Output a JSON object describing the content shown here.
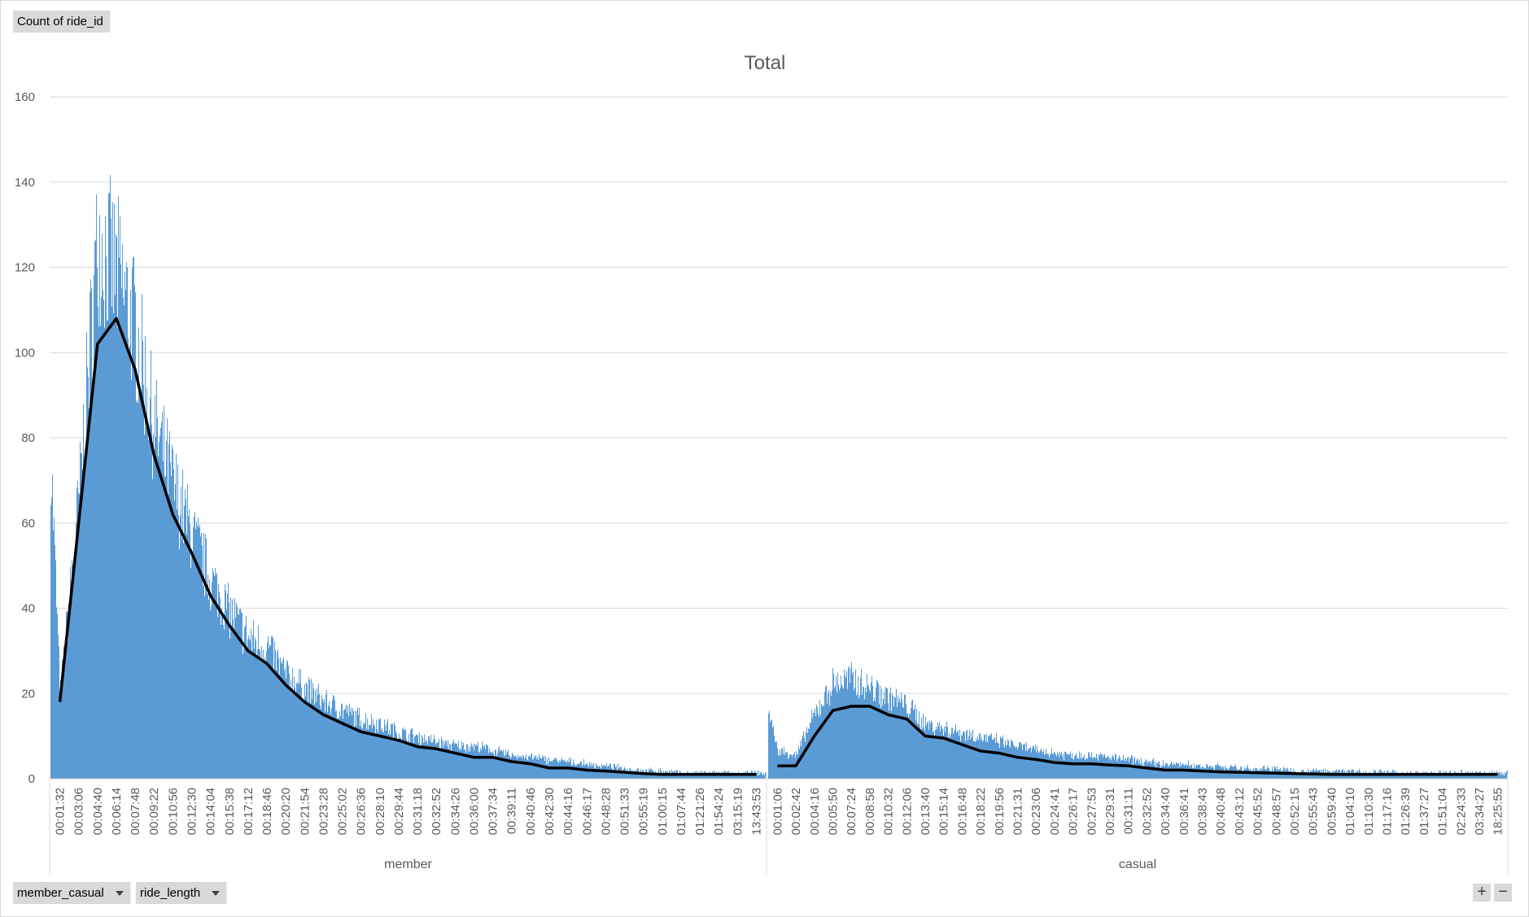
{
  "field_buttons": {
    "value_field": "Count of ride_id",
    "axis_fields": [
      "member_casual",
      "ride_length"
    ]
  },
  "zoom": {
    "expand": "+",
    "collapse": "−"
  },
  "chart_data": {
    "type": "bar",
    "title": "Total",
    "ylim": [
      0,
      160
    ],
    "yticks": [
      0,
      20,
      40,
      60,
      80,
      100,
      120,
      140,
      160
    ],
    "grid": true,
    "groups": [
      {
        "name": "member",
        "tick_labels": [
          "00:01:32",
          "00:03:06",
          "00:04:40",
          "00:06:14",
          "00:07:48",
          "00:09:22",
          "00:10:56",
          "00:12:30",
          "00:14:04",
          "00:15:38",
          "00:17:12",
          "00:18:46",
          "00:20:20",
          "00:21:54",
          "00:23:28",
          "00:25:02",
          "00:26:36",
          "00:28:10",
          "00:29:44",
          "00:31:18",
          "00:32:52",
          "00:34:26",
          "00:36:00",
          "00:37:34",
          "00:39:11",
          "00:40:46",
          "00:42:30",
          "00:44:16",
          "00:46:17",
          "00:48:28",
          "00:51:33",
          "00:55:19",
          "01:00:15",
          "01:07:44",
          "01:21:26",
          "01:54:24",
          "03:15:19",
          "13:43:53"
        ],
        "bar_profile": [
          {
            "x": "start",
            "y": 72
          },
          {
            "x": "00:01:32",
            "y": 18
          },
          {
            "x": "00:03:06",
            "y": 62
          },
          {
            "x": "00:04:40",
            "y": 120
          },
          {
            "x": "00:06:14",
            "y": 112
          },
          {
            "x": "00:07:48",
            "y": 100
          },
          {
            "x": "00:09:22",
            "y": 78
          },
          {
            "x": "00:10:56",
            "y": 65
          },
          {
            "x": "00:12:30",
            "y": 54
          },
          {
            "x": "00:14:04",
            "y": 44
          },
          {
            "x": "00:15:38",
            "y": 37
          },
          {
            "x": "00:17:12",
            "y": 31
          },
          {
            "x": "00:18:46",
            "y": 29
          },
          {
            "x": "00:20:20",
            "y": 23
          },
          {
            "x": "00:21:54",
            "y": 20
          },
          {
            "x": "00:23:28",
            "y": 17
          },
          {
            "x": "00:25:02",
            "y": 15
          },
          {
            "x": "00:26:36",
            "y": 13
          },
          {
            "x": "00:28:10",
            "y": 12
          },
          {
            "x": "00:29:44",
            "y": 10
          },
          {
            "x": "00:31:18",
            "y": 9
          },
          {
            "x": "00:32:52",
            "y": 8
          },
          {
            "x": "00:34:26",
            "y": 7
          },
          {
            "x": "00:36:00",
            "y": 7
          },
          {
            "x": "00:37:34",
            "y": 6
          },
          {
            "x": "00:39:11",
            "y": 5
          },
          {
            "x": "00:40:46",
            "y": 4.5
          },
          {
            "x": "00:42:30",
            "y": 4
          },
          {
            "x": "00:44:16",
            "y": 3.5
          },
          {
            "x": "00:46:17",
            "y": 3
          },
          {
            "x": "00:48:28",
            "y": 2.5
          },
          {
            "x": "00:51:33",
            "y": 2
          },
          {
            "x": "00:55:19",
            "y": 1.5
          },
          {
            "x": "01:00:15",
            "y": 1.5
          },
          {
            "x": "01:07:44",
            "y": 1
          },
          {
            "x": "01:21:26",
            "y": 1
          },
          {
            "x": "01:54:24",
            "y": 1
          },
          {
            "x": "03:15:19",
            "y": 1
          },
          {
            "x": "13:43:53",
            "y": 1
          }
        ],
        "trendline": [
          {
            "x": "00:01:32",
            "y": 18
          },
          {
            "x": "00:03:06",
            "y": 60
          },
          {
            "x": "00:04:40",
            "y": 102
          },
          {
            "x": "00:06:14",
            "y": 108
          },
          {
            "x": "00:07:48",
            "y": 96
          },
          {
            "x": "00:09:22",
            "y": 76
          },
          {
            "x": "00:10:56",
            "y": 62
          },
          {
            "x": "00:12:30",
            "y": 53
          },
          {
            "x": "00:14:04",
            "y": 43
          },
          {
            "x": "00:15:38",
            "y": 36
          },
          {
            "x": "00:17:12",
            "y": 30
          },
          {
            "x": "00:18:46",
            "y": 27
          },
          {
            "x": "00:20:20",
            "y": 22
          },
          {
            "x": "00:21:54",
            "y": 18
          },
          {
            "x": "00:23:28",
            "y": 15
          },
          {
            "x": "00:25:02",
            "y": 13
          },
          {
            "x": "00:26:36",
            "y": 11
          },
          {
            "x": "00:28:10",
            "y": 10
          },
          {
            "x": "00:29:44",
            "y": 9
          },
          {
            "x": "00:31:18",
            "y": 7.5
          },
          {
            "x": "00:32:52",
            "y": 7
          },
          {
            "x": "00:34:26",
            "y": 6
          },
          {
            "x": "00:36:00",
            "y": 5
          },
          {
            "x": "00:37:34",
            "y": 5
          },
          {
            "x": "00:39:11",
            "y": 4
          },
          {
            "x": "00:40:46",
            "y": 3.5
          },
          {
            "x": "00:42:30",
            "y": 2.5
          },
          {
            "x": "00:44:16",
            "y": 2.5
          },
          {
            "x": "00:46:17",
            "y": 2
          },
          {
            "x": "00:48:28",
            "y": 1.8
          },
          {
            "x": "00:51:33",
            "y": 1.5
          },
          {
            "x": "00:55:19",
            "y": 1.2
          },
          {
            "x": "01:00:15",
            "y": 1
          },
          {
            "x": "01:07:44",
            "y": 1
          },
          {
            "x": "01:21:26",
            "y": 1
          },
          {
            "x": "01:54:24",
            "y": 1
          },
          {
            "x": "03:15:19",
            "y": 1
          },
          {
            "x": "13:43:53",
            "y": 1
          }
        ]
      },
      {
        "name": "casual",
        "tick_labels": [
          "00:01:06",
          "00:02:42",
          "00:04:16",
          "00:05:50",
          "00:07:24",
          "00:08:58",
          "00:10:32",
          "00:12:06",
          "00:13:40",
          "00:15:14",
          "00:16:48",
          "00:18:22",
          "00:19:56",
          "00:21:31",
          "00:23:06",
          "00:24:41",
          "00:26:17",
          "00:27:53",
          "00:29:31",
          "00:31:11",
          "00:32:52",
          "00:34:40",
          "00:36:41",
          "00:38:43",
          "00:40:48",
          "00:43:12",
          "00:45:52",
          "00:48:57",
          "00:52:15",
          "00:55:43",
          "00:59:40",
          "01:04:10",
          "01:10:30",
          "01:17:16",
          "01:26:39",
          "01:37:27",
          "01:51:04",
          "02:24:33",
          "03:34:27",
          "18:25:55"
        ],
        "bar_profile": [
          {
            "x": "start",
            "y": 15
          },
          {
            "x": "00:01:06",
            "y": 6
          },
          {
            "x": "00:02:42",
            "y": 5
          },
          {
            "x": "00:04:16",
            "y": 14
          },
          {
            "x": "00:05:50",
            "y": 21
          },
          {
            "x": "00:07:24",
            "y": 22
          },
          {
            "x": "00:08:58",
            "y": 20
          },
          {
            "x": "00:10:32",
            "y": 18
          },
          {
            "x": "00:12:06",
            "y": 16
          },
          {
            "x": "00:13:40",
            "y": 12
          },
          {
            "x": "00:15:14",
            "y": 11
          },
          {
            "x": "00:16:48",
            "y": 10
          },
          {
            "x": "00:18:22",
            "y": 9
          },
          {
            "x": "00:19:56",
            "y": 8
          },
          {
            "x": "00:21:31",
            "y": 7
          },
          {
            "x": "00:23:06",
            "y": 6
          },
          {
            "x": "00:24:41",
            "y": 5.5
          },
          {
            "x": "00:26:17",
            "y": 5
          },
          {
            "x": "00:27:53",
            "y": 5
          },
          {
            "x": "00:29:31",
            "y": 4.5
          },
          {
            "x": "00:31:11",
            "y": 4
          },
          {
            "x": "00:32:52",
            "y": 3.5
          },
          {
            "x": "00:34:40",
            "y": 3
          },
          {
            "x": "00:36:41",
            "y": 3
          },
          {
            "x": "00:38:43",
            "y": 2.5
          },
          {
            "x": "00:40:48",
            "y": 2.5
          },
          {
            "x": "00:43:12",
            "y": 2
          },
          {
            "x": "00:45:52",
            "y": 2
          },
          {
            "x": "00:48:57",
            "y": 2
          },
          {
            "x": "00:52:15",
            "y": 1.5
          },
          {
            "x": "00:55:43",
            "y": 1.5
          },
          {
            "x": "00:59:40",
            "y": 1.5
          },
          {
            "x": "01:04:10",
            "y": 1.5
          },
          {
            "x": "01:10:30",
            "y": 1.2
          },
          {
            "x": "01:17:16",
            "y": 1.2
          },
          {
            "x": "01:26:39",
            "y": 1
          },
          {
            "x": "01:37:27",
            "y": 1
          },
          {
            "x": "01:51:04",
            "y": 1
          },
          {
            "x": "02:24:33",
            "y": 1
          },
          {
            "x": "03:34:27",
            "y": 1
          },
          {
            "x": "18:25:55",
            "y": 1
          }
        ],
        "trendline": [
          {
            "x": "00:01:06",
            "y": 3
          },
          {
            "x": "00:02:42",
            "y": 3
          },
          {
            "x": "00:04:16",
            "y": 10
          },
          {
            "x": "00:05:50",
            "y": 16
          },
          {
            "x": "00:07:24",
            "y": 17
          },
          {
            "x": "00:08:58",
            "y": 17
          },
          {
            "x": "00:10:32",
            "y": 15
          },
          {
            "x": "00:12:06",
            "y": 14
          },
          {
            "x": "00:13:40",
            "y": 10
          },
          {
            "x": "00:15:14",
            "y": 9.5
          },
          {
            "x": "00:16:48",
            "y": 8
          },
          {
            "x": "00:18:22",
            "y": 6.5
          },
          {
            "x": "00:19:56",
            "y": 6
          },
          {
            "x": "00:21:31",
            "y": 5
          },
          {
            "x": "00:23:06",
            "y": 4.5
          },
          {
            "x": "00:24:41",
            "y": 3.8
          },
          {
            "x": "00:26:17",
            "y": 3.5
          },
          {
            "x": "00:27:53",
            "y": 3.5
          },
          {
            "x": "00:29:31",
            "y": 3.2
          },
          {
            "x": "00:31:11",
            "y": 3
          },
          {
            "x": "00:32:52",
            "y": 2.5
          },
          {
            "x": "00:34:40",
            "y": 2
          },
          {
            "x": "00:36:41",
            "y": 2
          },
          {
            "x": "00:38:43",
            "y": 1.8
          },
          {
            "x": "00:40:48",
            "y": 1.6
          },
          {
            "x": "00:43:12",
            "y": 1.5
          },
          {
            "x": "00:45:52",
            "y": 1.4
          },
          {
            "x": "00:48:57",
            "y": 1.3
          },
          {
            "x": "00:52:15",
            "y": 1.2
          },
          {
            "x": "00:55:43",
            "y": 1.1
          },
          {
            "x": "00:59:40",
            "y": 1
          },
          {
            "x": "01:04:10",
            "y": 1
          },
          {
            "x": "01:10:30",
            "y": 1
          },
          {
            "x": "01:17:16",
            "y": 1
          },
          {
            "x": "01:26:39",
            "y": 1
          },
          {
            "x": "01:37:27",
            "y": 1
          },
          {
            "x": "01:51:04",
            "y": 1
          },
          {
            "x": "02:24:33",
            "y": 1
          },
          {
            "x": "03:34:27",
            "y": 1
          },
          {
            "x": "18:25:55",
            "y": 1
          }
        ]
      }
    ],
    "colors": {
      "bars": "#5b9bd5",
      "trendline": "#000000",
      "gridlines": "#d9d9d9",
      "field_button": "#d9d9d9"
    }
  }
}
